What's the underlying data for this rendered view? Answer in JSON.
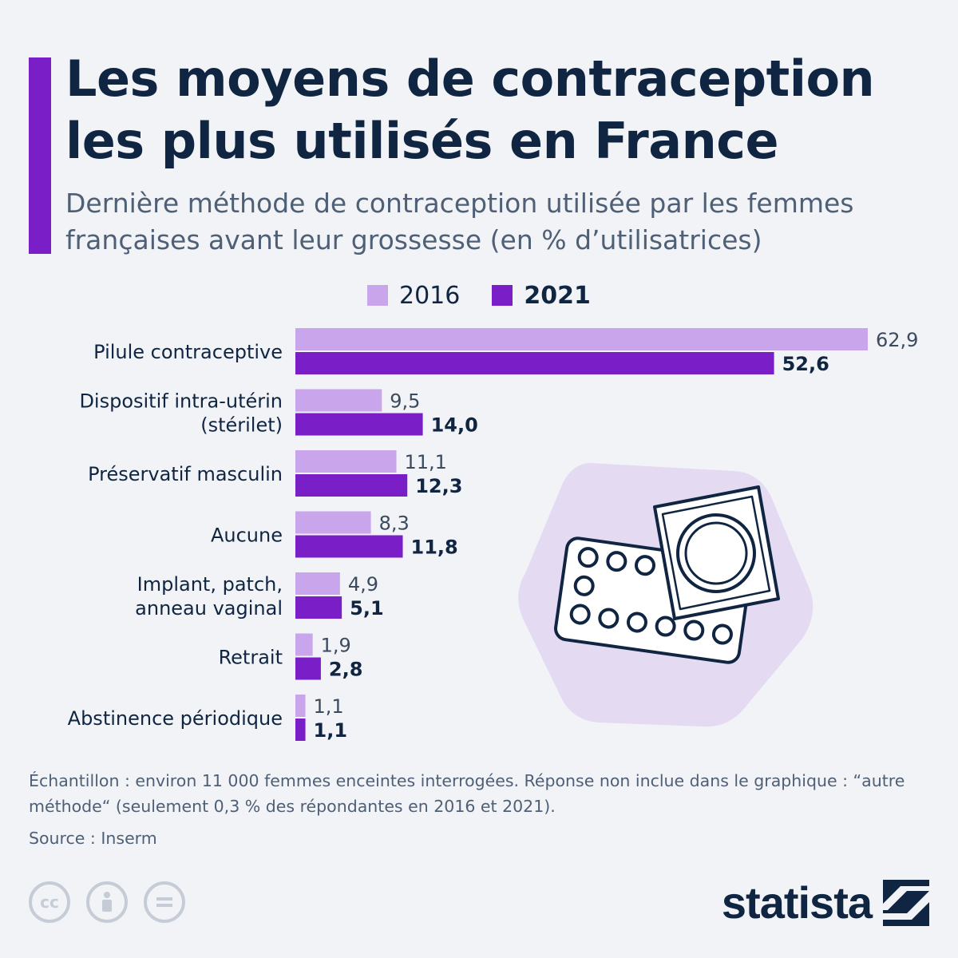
{
  "header": {
    "title": "Les moyens de contraception les plus utilisés en France",
    "subtitle": "Dernière méthode de contraception utilisée par les femmes françaises avant leur grossesse (en % d’utilisatrices)"
  },
  "legend": {
    "items": [
      {
        "label": "2016",
        "color": "#c9a6eb"
      },
      {
        "label": "2021",
        "color": "#7a1fc8"
      }
    ]
  },
  "chart_data": {
    "type": "bar",
    "orientation": "horizontal",
    "title": "Les moyens de contraception les plus utilisés en France",
    "subtitle": "Dernière méthode de contraception utilisée par les femmes françaises avant leur grossesse (en % d’utilisatrices)",
    "categories": [
      [
        "Pilule contraceptive"
      ],
      [
        "Dispositif intra-utérin",
        "(stérilet)"
      ],
      [
        "Préservatif masculin"
      ],
      [
        "Aucune"
      ],
      [
        "Implant, patch,",
        "anneau vaginal"
      ],
      [
        "Retrait"
      ],
      [
        "Abstinence périodique"
      ]
    ],
    "series": [
      {
        "name": "2016",
        "color": "#c9a6eb",
        "values": [
          62.9,
          9.5,
          11.1,
          8.3,
          4.9,
          1.9,
          1.1
        ],
        "labels": [
          "62,9",
          "9,5",
          "11,1",
          "8,3",
          "4,9",
          "1,9",
          "1,1"
        ]
      },
      {
        "name": "2021",
        "color": "#7a1fc8",
        "values": [
          52.6,
          14.0,
          12.3,
          11.8,
          5.1,
          2.8,
          1.1
        ],
        "labels": [
          "52,6",
          "14,0",
          "12,3",
          "11,8",
          "5,1",
          "2,8",
          "1,1"
        ]
      }
    ],
    "xlim": [
      0,
      62.9
    ],
    "grid": false,
    "legend_position": "top"
  },
  "illustration": {
    "icon": "contraceptive-pills-and-condom-icon",
    "bg_color": "#e4dbf3"
  },
  "footer": {
    "note": "Échantillon : environ 11 000 femmes enceintes interrogées. Réponse non inclue dans le graphique : “autre méthode“ (seulement 0,3 % des répondantes en 2016 et 2021).",
    "source": "Source : Inserm",
    "license_icons": [
      "creative-commons-icon",
      "attribution-icon",
      "no-derivatives-icon"
    ],
    "brand": "statista"
  }
}
